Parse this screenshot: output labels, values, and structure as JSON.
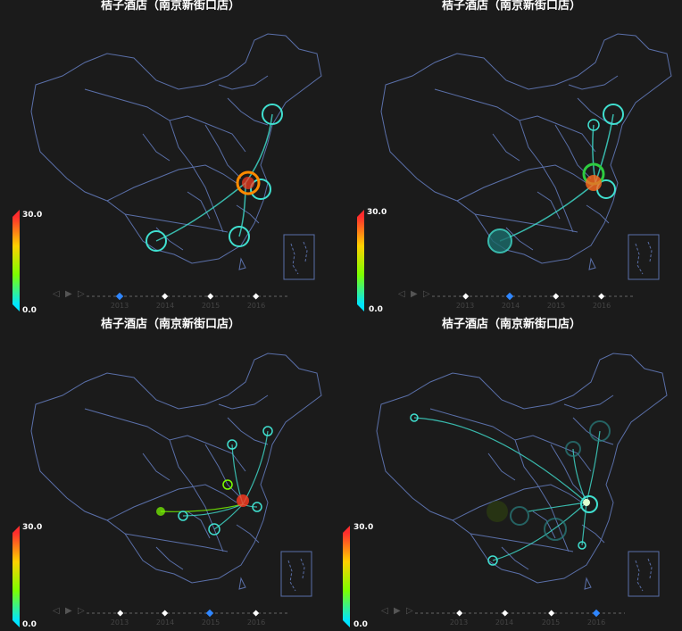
{
  "panels": [
    {
      "title": "桔子酒店（南京新街口店）",
      "active_year": "2013"
    },
    {
      "title": "桔子酒店（南京新街口店）",
      "active_year": "2014"
    },
    {
      "title": "桔子酒店（南京新街口店）",
      "active_year": "2015"
    },
    {
      "title": "桔子酒店（南京新街口店）",
      "active_year": "2016"
    }
  ],
  "legend": {
    "max": "30.0",
    "min": "0.0"
  },
  "timeline": {
    "years": [
      "2013",
      "2014",
      "2015",
      "2016"
    ],
    "controls": {
      "prev": "◁",
      "play": "▶",
      "next": "▷"
    }
  },
  "colors": {
    "background": "#1b1b1b",
    "map_border": "#5a6fa8",
    "flow": "#40e0d0",
    "active": "#2f86ff",
    "hot": "#ff3b1f"
  }
}
